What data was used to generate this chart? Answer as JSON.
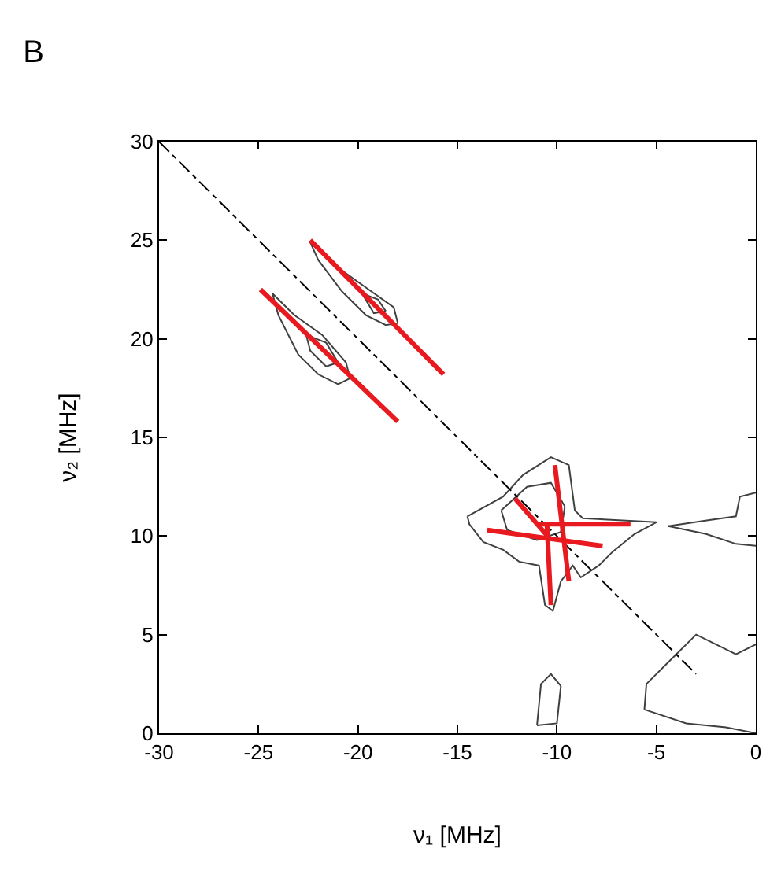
{
  "chart_data": {
    "type": "line",
    "title": "B",
    "xlabel": "ν₁ [MHz]",
    "ylabel": "ν₂ [MHz]",
    "xlim": [
      -30,
      0
    ],
    "xticks": [
      -30,
      -25,
      -20,
      -15,
      -10,
      -5,
      0
    ],
    "ylim": [
      0,
      30
    ],
    "yticks": [
      0,
      5,
      10,
      15,
      20,
      25,
      30
    ],
    "grid": false,
    "marker": "none",
    "series": [
      {
        "color": "#404040",
        "x": [
          -24.3,
          -23.2,
          -21.8,
          -20.6,
          -20.4
        ],
        "values": [
          22.3,
          21.2,
          20.2,
          18.8,
          18.0
        ]
      },
      {
        "color": "#404040",
        "x": [
          -24.3,
          -24.0,
          -23.0,
          -22.0,
          -21.0,
          -20.4
        ],
        "values": [
          22.3,
          21.2,
          19.2,
          18.2,
          17.7,
          18.0
        ]
      },
      {
        "color": "#404040",
        "x": [
          -22.6,
          -21.6,
          -21.0
        ],
        "values": [
          20.2,
          19.8,
          18.8
        ]
      },
      {
        "color": "#404040",
        "x": [
          -22.6,
          -22.4,
          -21.6,
          -21.0
        ],
        "values": [
          20.2,
          19.4,
          18.6,
          18.8
        ]
      },
      {
        "color": "#404040",
        "x": [
          -22.4,
          -21.0,
          -19.6,
          -18.2,
          -18.0
        ],
        "values": [
          24.9,
          23.6,
          22.6,
          21.6,
          20.8
        ]
      },
      {
        "color": "#404040",
        "x": [
          -22.4,
          -22.0,
          -20.8,
          -19.6,
          -18.6,
          -18.0
        ],
        "values": [
          24.9,
          24.0,
          22.4,
          21.2,
          20.7,
          20.8
        ]
      },
      {
        "color": "#404040",
        "x": [
          -19.8,
          -19.0,
          -18.6
        ],
        "values": [
          22.3,
          22.0,
          21.4
        ]
      },
      {
        "color": "#404040",
        "x": [
          -19.8,
          -19.2,
          -18.6
        ],
        "values": [
          22.3,
          21.3,
          21.4
        ]
      },
      {
        "color": "#404040",
        "x": [
          -14.5,
          -12.7,
          -11.7,
          -10.3,
          -9.4,
          -9.1,
          -8.7,
          -5.0
        ],
        "values": [
          11.0,
          12.0,
          13.1,
          14.0,
          13.6,
          11.3,
          10.9,
          10.7
        ]
      },
      {
        "color": "#404040",
        "x": [
          -14.5,
          -14.4,
          -13.7,
          -12.7,
          -11.9,
          -10.9,
          -10.6,
          -10.2,
          -9.8,
          -9.2,
          -8.8,
          -7.9,
          -7.2,
          -6.1,
          -5.0
        ],
        "values": [
          11.0,
          10.6,
          9.7,
          9.3,
          8.7,
          8.5,
          6.5,
          6.2,
          7.7,
          8.5,
          7.9,
          8.5,
          9.2,
          10.1,
          10.7
        ]
      },
      {
        "color": "#404040",
        "x": [
          -12.8,
          -11.5,
          -10.3,
          -9.6
        ],
        "values": [
          11.3,
          12.5,
          12.7,
          11.5
        ]
      },
      {
        "color": "#404040",
        "x": [
          -12.8,
          -12.5,
          -11.0,
          -9.8,
          -9.6
        ],
        "values": [
          11.3,
          10.3,
          9.8,
          10.2,
          11.5
        ]
      },
      {
        "color": "#404040",
        "x": [
          -4.4,
          -2.4,
          -1.0,
          -0.8,
          0.0
        ],
        "values": [
          10.5,
          10.8,
          11.0,
          12.0,
          12.2
        ]
      },
      {
        "color": "#404040",
        "x": [
          -4.4,
          -2.5,
          -1.0,
          0.0
        ],
        "values": [
          10.5,
          10.1,
          9.6,
          9.5
        ]
      },
      {
        "color": "#404040",
        "x": [
          -5.6,
          -5.5,
          -4.5,
          -3.0,
          -2.0,
          -1.0,
          0.0
        ],
        "values": [
          1.2,
          2.5,
          3.5,
          5.0,
          4.5,
          4.0,
          4.5
        ]
      },
      {
        "color": "#404040",
        "x": [
          -5.6,
          -3.5,
          -1.5,
          0.0
        ],
        "values": [
          1.2,
          0.5,
          0.3,
          0.0
        ]
      },
      {
        "color": "#404040",
        "x": [
          -11.0,
          -10.8,
          -10.3,
          -9.8
        ],
        "values": [
          0.4,
          2.5,
          3.0,
          2.4
        ]
      },
      {
        "color": "#404040",
        "x": [
          -11.0,
          -10.0,
          -9.8
        ],
        "values": [
          0.4,
          0.5,
          2.4
        ]
      },
      {
        "color": "#000000",
        "line_style": "dashed",
        "x": [
          -30,
          -3
        ],
        "values": [
          30,
          3
        ]
      },
      {
        "color": "#e8191f",
        "x": [
          -24.9,
          -18.0
        ],
        "values": [
          22.5,
          15.8
        ]
      },
      {
        "color": "#e8191f",
        "x": [
          -22.4,
          -15.7
        ],
        "values": [
          25.0,
          18.2
        ]
      },
      {
        "color": "#e8191f",
        "x": [
          -10.1,
          -9.4
        ],
        "values": [
          13.6,
          7.7
        ]
      },
      {
        "color": "#e8191f",
        "x": [
          -10.5,
          -10.3
        ],
        "values": [
          10.6,
          6.5
        ]
      },
      {
        "color": "#e8191f",
        "x": [
          -13.5,
          -7.7
        ],
        "values": [
          10.3,
          9.5
        ]
      },
      {
        "color": "#e8191f",
        "x": [
          -11.0,
          -6.3
        ],
        "values": [
          10.6,
          10.6
        ]
      },
      {
        "color": "#e8191f",
        "x": [
          -12.1,
          -10.3
        ],
        "values": [
          11.9,
          9.8
        ]
      }
    ]
  }
}
